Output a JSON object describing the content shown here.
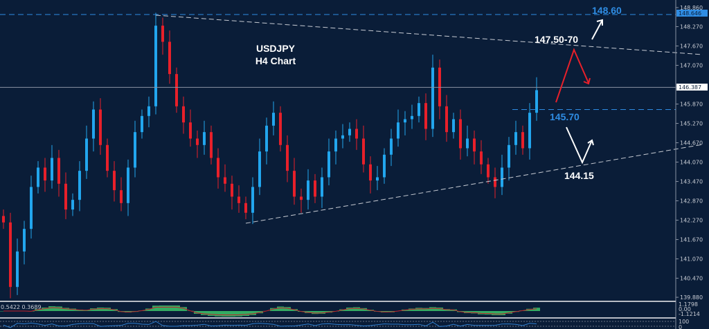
{
  "chart_data": {
    "type": "candlestick",
    "title": "USDJPY",
    "subtitle": "H4 Chart",
    "ylim": [
      139.6,
      149.1
    ],
    "y_ticks": [
      "148.860",
      "148.270",
      "147.670",
      "147.070",
      "145.870",
      "145.270",
      "144.670",
      "144.070",
      "143.470",
      "142.870",
      "142.270",
      "141.670",
      "141.070",
      "140.470",
      "139.880"
    ],
    "y_tick_values": [
      148.86,
      148.27,
      147.67,
      147.07,
      145.87,
      145.27,
      144.67,
      144.07,
      143.47,
      142.87,
      142.27,
      141.67,
      141.07,
      140.47,
      139.88
    ],
    "current_price": {
      "label": "146.387",
      "value": 146.387
    },
    "upper_level": {
      "label": "148.646",
      "value": 148.646
    },
    "first_open": 142.4,
    "closes": [
      142.2,
      140.2,
      141.3,
      142.0,
      143.3,
      143.9,
      143.5,
      144.2,
      143.4,
      142.6,
      142.9,
      143.8,
      144.8,
      145.7,
      144.6,
      143.8,
      143.2,
      142.8,
      143.9,
      145.0,
      145.5,
      145.8,
      148.3,
      147.8,
      146.8,
      145.8,
      145.3,
      144.8,
      144.6,
      145.0,
      144.2,
      143.6,
      143.4,
      143.0,
      142.8,
      142.5,
      143.3,
      144.4,
      145.2,
      145.6,
      144.6,
      143.8,
      143.0,
      142.9,
      143.5,
      143.0,
      143.6,
      144.4,
      144.8,
      144.9,
      145.1,
      144.8,
      144.0,
      143.5,
      143.6,
      144.3,
      144.8,
      145.3,
      145.4,
      145.5,
      145.9,
      145.1,
      147.0,
      145.8,
      145.0,
      145.4,
      144.5,
      144.8,
      144.4,
      144.0,
      143.6,
      143.3,
      143.9,
      144.6,
      145.0,
      144.5,
      145.6,
      146.3
    ],
    "annotations": [
      {
        "text": "148.60",
        "color": "#2f8de4"
      },
      {
        "text": "147.50-70",
        "color": "#ffffff"
      },
      {
        "text": "145.70",
        "color": "#2f8de4"
      },
      {
        "text": "144.15",
        "color": "#ffffff"
      }
    ],
    "macd": {
      "values_label": "0.5422 0.3689",
      "ticks": [
        "1.1798",
        "0.00",
        "-1.1214"
      ]
    },
    "oscillator": {
      "ticks": [
        "100",
        "0"
      ]
    },
    "colors": {
      "background": "#0a1d38",
      "bull": "#22a6ee",
      "bear": "#e8202a",
      "level": "#2f8de4",
      "macd_hist": "#3cc46a",
      "macd_signal": "#c0202a"
    }
  }
}
